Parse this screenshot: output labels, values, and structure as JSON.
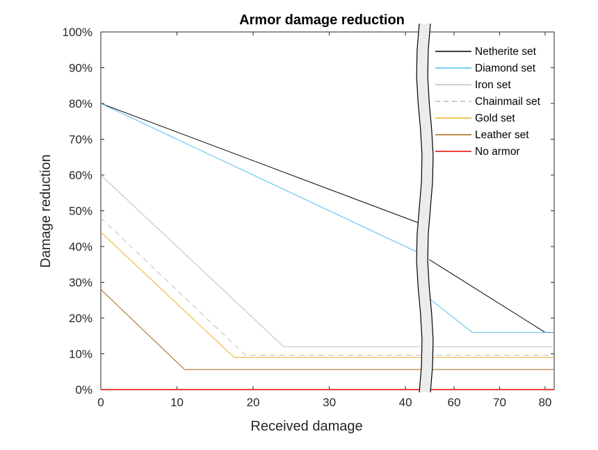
{
  "chart_data": {
    "type": "line",
    "title": "Armor damage reduction",
    "xlabel": "Received damage",
    "ylabel": "Damage reduction",
    "axis_break": {
      "left_xlim": [
        0,
        42
      ],
      "right_xlim": [
        54.5,
        82
      ]
    },
    "ylim": [
      0,
      100
    ],
    "x_ticks_left": [
      0,
      10,
      20,
      30,
      40
    ],
    "x_ticks_right": [
      60,
      70,
      80
    ],
    "y_ticks": [
      0,
      10,
      20,
      30,
      40,
      50,
      60,
      70,
      80,
      90,
      100
    ],
    "y_tick_labels": [
      "0%",
      "10%",
      "20%",
      "30%",
      "40%",
      "50%",
      "60%",
      "70%",
      "80%",
      "90%",
      "100%"
    ],
    "x_tick_labels_left": [
      "0",
      "10",
      "20",
      "30",
      "40"
    ],
    "x_tick_labels_right": [
      "60",
      "70",
      "80"
    ],
    "legend_position": "top-right",
    "series": [
      {
        "name": "Netherite set",
        "color": "#000000",
        "dash": "solid",
        "points": [
          [
            0,
            80
          ],
          [
            80,
            16
          ],
          [
            82,
            16
          ]
        ]
      },
      {
        "name": "Diamond set",
        "color": "#4DBEEE",
        "dash": "solid",
        "points": [
          [
            0,
            80
          ],
          [
            64,
            16
          ],
          [
            82,
            16
          ]
        ]
      },
      {
        "name": "Iron set",
        "color": "#BDBDBD",
        "dash": "solid",
        "points": [
          [
            0,
            60
          ],
          [
            24,
            12
          ],
          [
            82,
            12
          ]
        ]
      },
      {
        "name": "Chainmail set",
        "color": "#BDBDBD",
        "dash": "dashed",
        "points": [
          [
            0,
            48
          ],
          [
            19,
            9.6
          ],
          [
            82,
            9.6
          ]
        ]
      },
      {
        "name": "Gold set",
        "color": "#EDB120",
        "dash": "solid",
        "points": [
          [
            0,
            44
          ],
          [
            17.5,
            9
          ],
          [
            82,
            9
          ]
        ]
      },
      {
        "name": "Leather set",
        "color": "#A2640F",
        "dash": "solid",
        "points": [
          [
            0,
            28
          ],
          [
            11,
            5.6
          ],
          [
            82,
            5.6
          ]
        ]
      },
      {
        "name": "No armor",
        "color": "#E8413A",
        "dash": "solid",
        "points": [
          [
            0,
            0
          ],
          [
            82,
            0
          ]
        ]
      }
    ]
  }
}
